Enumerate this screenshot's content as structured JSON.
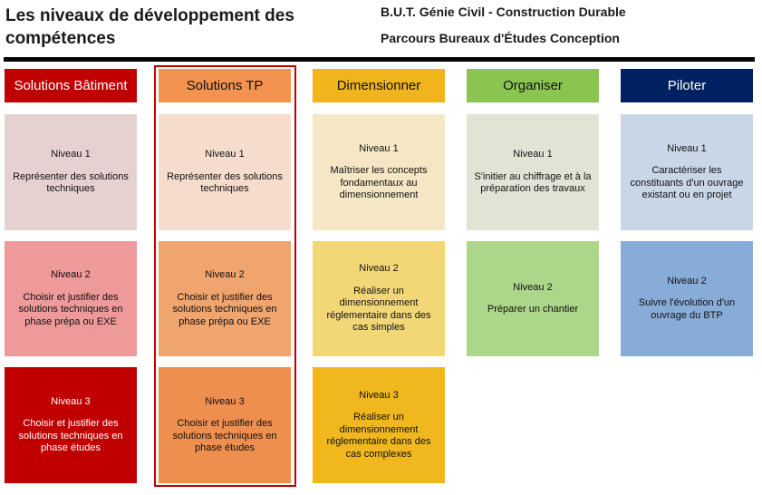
{
  "header": {
    "title": "Les niveaux de développement des compétences",
    "program": "B.U.T. Génie Civil - Construction Durable",
    "track": "Parcours Bureaux d'Études Conception"
  },
  "columns": [
    {
      "label": "Solutions Bâtiment",
      "header_color": "#c00000",
      "levels": [
        {
          "level": "Niveau 1",
          "text": "Représenter des solutions techniques",
          "color": "#e6d1d1"
        },
        {
          "level": "Niveau 2",
          "text": "Choisir et justifier des solutions techniques en phase prépa ou EXE",
          "color": "#ee999a"
        },
        {
          "level": "Niveau 3",
          "text": "Choisir et justifier des solutions techniques en phase études",
          "color": "#c00000"
        }
      ]
    },
    {
      "label": "Solutions TP",
      "header_color": "#f4924f",
      "levels": [
        {
          "level": "Niveau 1",
          "text": "Représenter des solutions techniques",
          "color": "#f5dccc"
        },
        {
          "level": "Niveau 2",
          "text": "Choisir et justifier des solutions techniques en phase prépa ou EXE",
          "color": "#f0a46e"
        },
        {
          "level": "Niveau 3",
          "text": "Choisir et justifier des solutions techniques en phase études",
          "color": "#ef8f4f"
        }
      ]
    },
    {
      "label": "Dimensionner",
      "header_color": "#f0b41c",
      "levels": [
        {
          "level": "Niveau 1",
          "text": "Maîtriser les concepts fondamentaux au dimensionnement",
          "color": "#f5e7c5"
        },
        {
          "level": "Niveau 2",
          "text": "Réaliser un dimensionnement réglementaire dans des cas simples",
          "color": "#f3d777"
        },
        {
          "level": "Niveau 3",
          "text": "Réaliser un dimensionnement réglementaire dans des cas complexes",
          "color": "#f1b71e"
        }
      ]
    },
    {
      "label": "Organiser",
      "header_color": "#8bc551",
      "levels": [
        {
          "level": "Niveau 1",
          "text": "S'initier au chiffrage et à la préparation des travaux",
          "color": "#e1e4d5"
        },
        {
          "level": "Niveau 2",
          "text": "Préparer un chantier",
          "color": "#acd689"
        }
      ]
    },
    {
      "label": "Piloter",
      "header_color": "#002161",
      "levels": [
        {
          "level": "Niveau 1",
          "text": "Caractériser les constituants d'un ouvrage existant ou en projet",
          "color": "#c8d6e8"
        },
        {
          "level": "Niveau 2",
          "text": "Suivre l'évolution d'un ouvrage du BTP",
          "color": "#88acd8"
        }
      ]
    }
  ],
  "theme": {
    "dark_text": "#111111",
    "light_text": "#ffffff",
    "highlight_border": "#c00000",
    "rule": "#000000"
  }
}
